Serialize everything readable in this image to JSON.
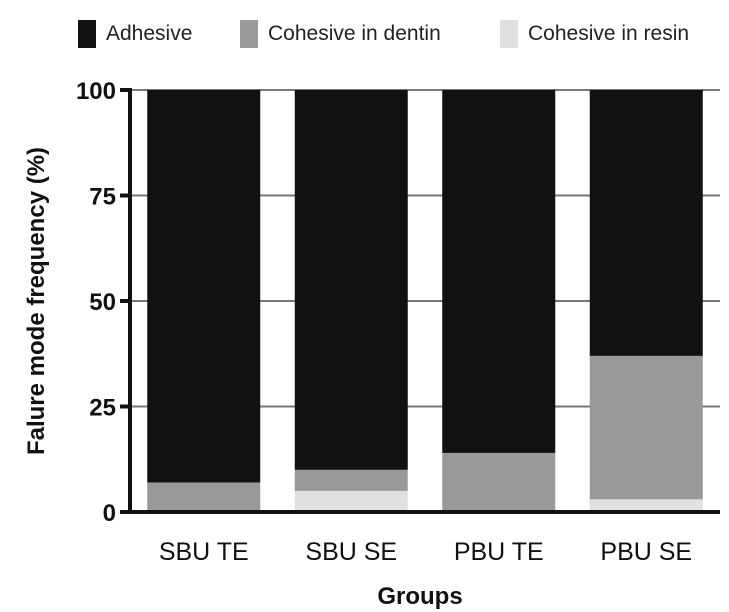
{
  "chart_data": {
    "type": "bar",
    "stacked": true,
    "categories": [
      "SBU TE",
      "SBU SE",
      "PBU TE",
      "PBU SE"
    ],
    "series": [
      {
        "name": "Cohesive in resin",
        "color": "#e0e0e0",
        "values": [
          0,
          5,
          0,
          3
        ]
      },
      {
        "name": "Cohesive in dentin",
        "color": "#999999",
        "values": [
          7,
          5,
          14,
          34
        ]
      },
      {
        "name": "Adhesive",
        "color": "#111111",
        "values": [
          93,
          90,
          86,
          63
        ]
      }
    ],
    "legend_order": [
      "Adhesive",
      "Cohesive in dentin",
      "Cohesive in resin"
    ],
    "legend_position": "top",
    "xlabel": "Groups",
    "ylabel": "Falure mode frequency (%)",
    "ylim": [
      0,
      100
    ],
    "yticks": [
      0,
      25,
      50,
      75,
      100
    ],
    "grid": true,
    "grid_color": "#777777"
  }
}
